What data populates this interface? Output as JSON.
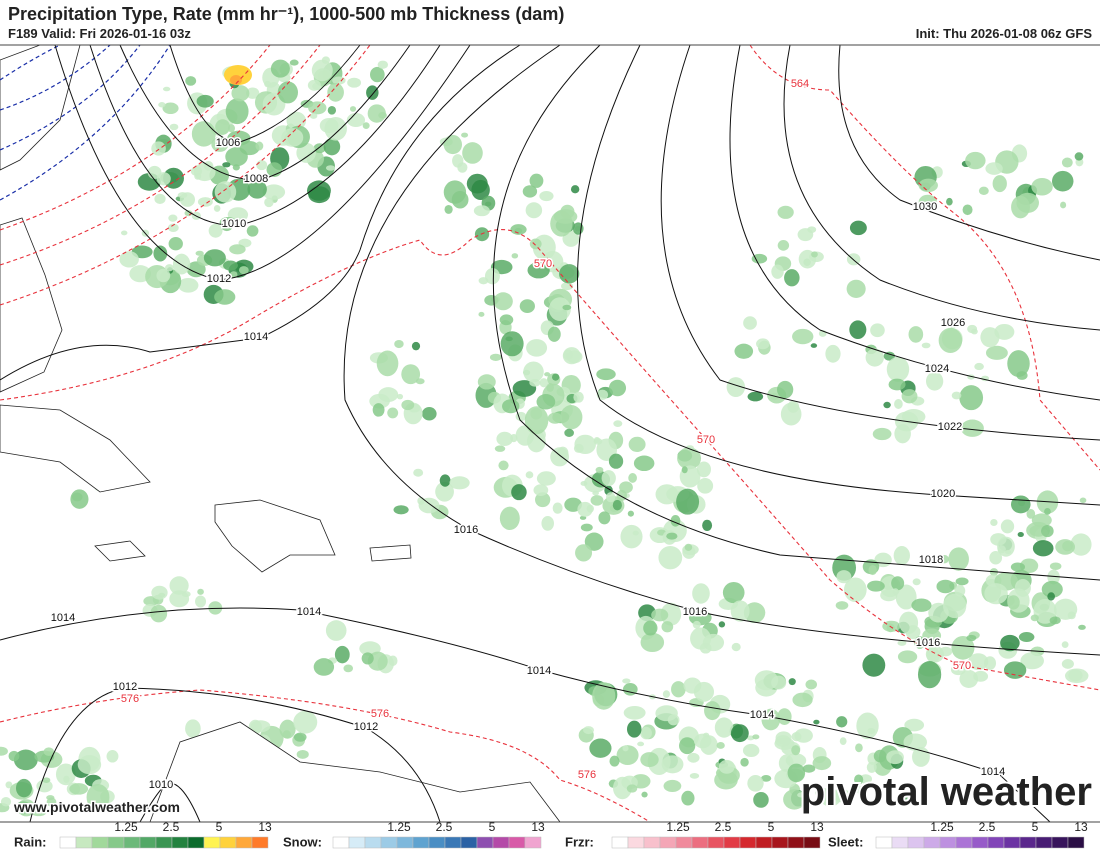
{
  "header": {
    "title": "Precipitation Type, Rate (mm hr⁻¹), 1000-500 mb Thickness (dam)",
    "valid": "F189 Valid: Fri 2026-01-16 03z",
    "init": "Init: Thu 2026-01-08 06z GFS"
  },
  "isobar_labels": [
    1006,
    1008,
    1010,
    1012,
    1014,
    1030,
    1026,
    1024,
    1022,
    1020,
    1018,
    1016,
    1016,
    1016,
    1014,
    1014,
    1014,
    1014,
    1014,
    1012,
    1012,
    1010
  ],
  "thickness_labels": [
    564,
    570,
    570,
    570,
    576,
    576,
    576
  ],
  "website": "www.pivotalweather.com",
  "watermark": "pivotal weather",
  "legend": [
    {
      "label": "Rain:",
      "ticks": [
        1.25,
        2.5,
        5,
        13
      ],
      "colors": [
        "#ffffff",
        "#c7e9c0",
        "#a1d99b",
        "#86c98a",
        "#6cb97a",
        "#52a866",
        "#3a9552",
        "#23823f",
        "#0b6b2c",
        "#fff352",
        "#ffd23c",
        "#ffa83a",
        "#ff7b2a"
      ]
    },
    {
      "label": "Snow:",
      "ticks": [
        1.25,
        2.5,
        5,
        13
      ],
      "colors": [
        "#ffffff",
        "#d6ecf7",
        "#b9dcef",
        "#9ccbe6",
        "#7eb8dc",
        "#5fa3d0",
        "#4a8ec4",
        "#3a78b6",
        "#2b62a5",
        "#8e4fb0",
        "#b44aa8",
        "#d85aa8",
        "#f0a4d0"
      ]
    },
    {
      "label": "Frzr:",
      "ticks": [
        1.25,
        2.5,
        5,
        13
      ],
      "colors": [
        "#ffffff",
        "#fbd9e0",
        "#f8c0cc",
        "#f4a6b6",
        "#f08a9c",
        "#ec6e80",
        "#e85462",
        "#e23b46",
        "#d5282e",
        "#c01d22",
        "#a8151c",
        "#901018",
        "#780c14"
      ]
    },
    {
      "label": "Sleet:",
      "ticks": [
        1.25,
        2.5,
        5,
        13
      ],
      "colors": [
        "#ffffff",
        "#eadcf5",
        "#dcc4ef",
        "#cdaae8",
        "#bd90e0",
        "#ab74d6",
        "#975bc9",
        "#8245b8",
        "#6c33a3",
        "#5a278c",
        "#481c74",
        "#38145c",
        "#2a0e45"
      ]
    }
  ]
}
